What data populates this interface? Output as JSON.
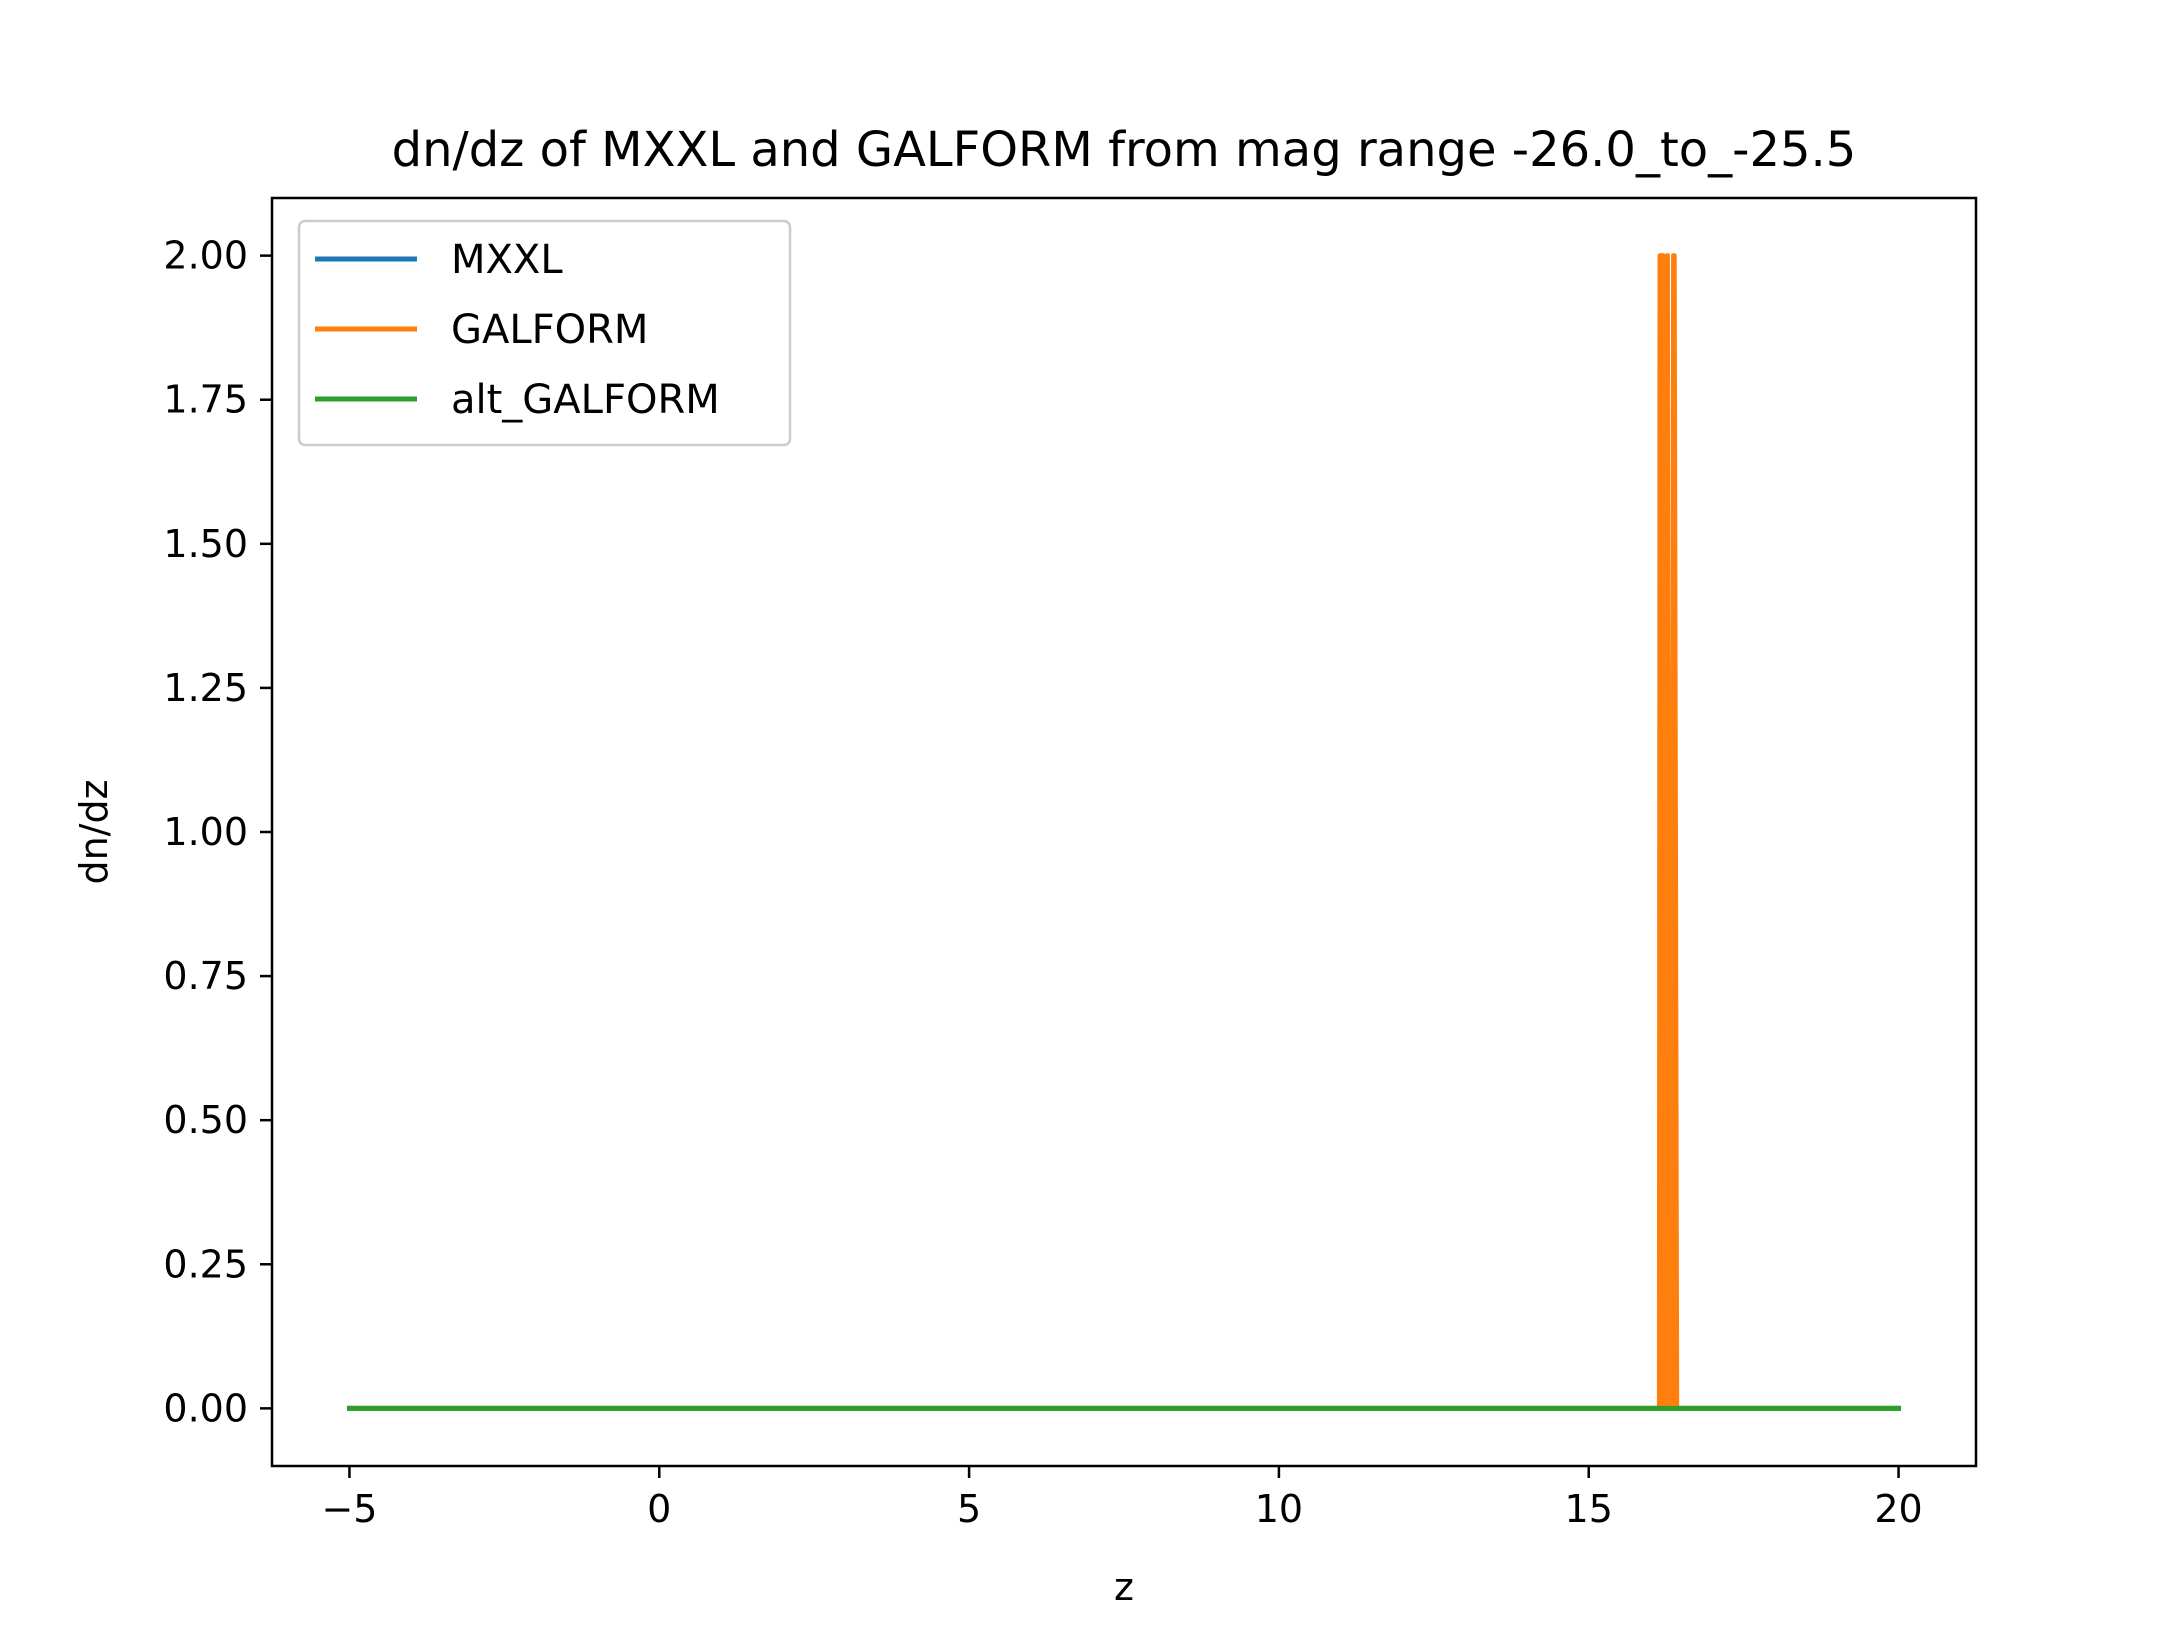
{
  "chart_data": {
    "type": "line",
    "title": "dn/dz of MXXL and GALFORM from mag range -26.0_to_-25.5",
    "xlabel": "z",
    "ylabel": "dn/dz",
    "xlim": [
      -6.25,
      21.25
    ],
    "ylim": [
      -0.1,
      2.1
    ],
    "grid": false,
    "legend_position": "upper-left",
    "xticks": [
      {
        "value": -5,
        "label": "−5"
      },
      {
        "value": 0,
        "label": "0"
      },
      {
        "value": 5,
        "label": "5"
      },
      {
        "value": 10,
        "label": "10"
      },
      {
        "value": 15,
        "label": "15"
      },
      {
        "value": 20,
        "label": "20"
      }
    ],
    "yticks": [
      {
        "value": 0.0,
        "label": "0.00"
      },
      {
        "value": 0.25,
        "label": "0.25"
      },
      {
        "value": 0.5,
        "label": "0.50"
      },
      {
        "value": 0.75,
        "label": "0.75"
      },
      {
        "value": 1.0,
        "label": "1.00"
      },
      {
        "value": 1.25,
        "label": "1.25"
      },
      {
        "value": 1.5,
        "label": "1.50"
      },
      {
        "value": 1.75,
        "label": "1.75"
      },
      {
        "value": 2.0,
        "label": "2.00"
      }
    ],
    "series": [
      {
        "name": "MXXL",
        "color": "#1f77b4",
        "x": [
          -5,
          20
        ],
        "y": [
          0,
          0
        ]
      },
      {
        "name": "GALFORM",
        "color": "#ff7f0e",
        "x": [
          -5,
          16.14,
          16.15,
          16.2,
          16.22,
          16.27,
          16.29,
          16.32,
          16.34,
          16.37,
          16.38,
          16.42,
          16.43,
          20
        ],
        "y": [
          0,
          0,
          2,
          2,
          0,
          2,
          0,
          1,
          0,
          2,
          2,
          0,
          0,
          0
        ]
      },
      {
        "name": "alt_GALFORM",
        "color": "#2ca02c",
        "x": [
          -5,
          20
        ],
        "y": [
          0,
          0
        ]
      }
    ]
  }
}
